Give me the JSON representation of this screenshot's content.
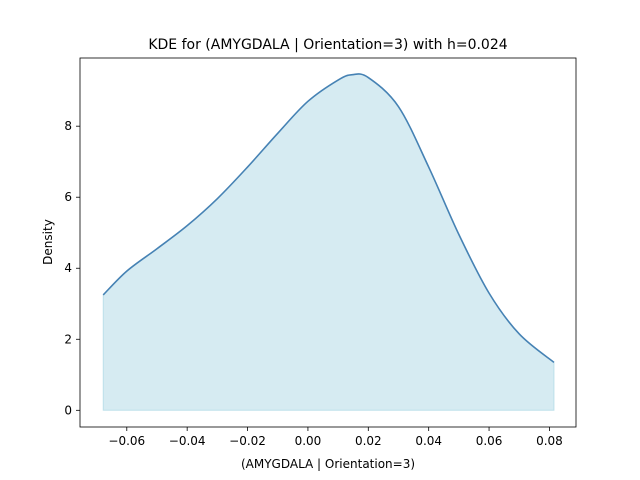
{
  "chart_data": {
    "type": "area",
    "title": "KDE for (AMYGDALA | Orientation=3) with h=0.024",
    "xlabel": "(AMYGDALA | Orientation=3)",
    "ylabel": "Density",
    "xlim": [
      -0.0755,
      0.0888
    ],
    "ylim": [
      -0.47,
      9.92
    ],
    "xticks": [
      -0.06,
      -0.04,
      -0.02,
      0.0,
      0.02,
      0.04,
      0.06,
      0.08
    ],
    "xtick_labels": [
      "−0.06",
      "−0.04",
      "−0.02",
      "0.00",
      "0.02",
      "0.04",
      "0.06",
      "0.08"
    ],
    "yticks": [
      0,
      2,
      4,
      6,
      8
    ],
    "ytick_labels": [
      "0",
      "2",
      "4",
      "6",
      "8"
    ],
    "grid": false,
    "legend": "none",
    "series": [
      {
        "x": [
          -0.0678,
          -0.06,
          -0.05,
          -0.04,
          -0.03,
          -0.02,
          -0.01,
          0.0,
          0.01,
          0.0147,
          0.02,
          0.03,
          0.04,
          0.05,
          0.06,
          0.07,
          0.0815
        ],
        "y": [
          3.25,
          3.92,
          4.55,
          5.2,
          5.96,
          6.85,
          7.8,
          8.7,
          9.3,
          9.45,
          9.37,
          8.55,
          6.85,
          4.95,
          3.3,
          2.15,
          1.35
        ],
        "line_color": "#4682b4",
        "fill_color": "#add8e6"
      }
    ]
  }
}
